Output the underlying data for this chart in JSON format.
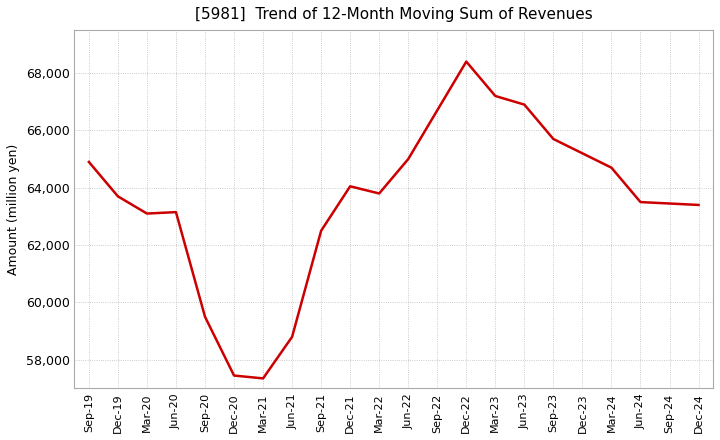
{
  "title": "[5981]  Trend of 12-Month Moving Sum of Revenues",
  "ylabel": "Amount (million yen)",
  "line_color": "#cc0000",
  "line_width": 1.8,
  "background_color": "#ffffff",
  "plot_bg_color": "#ffffff",
  "grid_color": "#bbbbbb",
  "ylim": [
    57000,
    69500
  ],
  "yticks": [
    58000,
    60000,
    62000,
    64000,
    66000,
    68000
  ],
  "ytick_labels": [
    "58,000",
    "60,000",
    "62,000",
    "64,000",
    "66,000",
    "68,000"
  ],
  "x_labels": [
    "Sep-19",
    "Dec-19",
    "Mar-20",
    "Jun-20",
    "Sep-20",
    "Dec-20",
    "Mar-21",
    "Jun-21",
    "Sep-21",
    "Dec-21",
    "Mar-22",
    "Jun-22",
    "Sep-22",
    "Dec-22",
    "Mar-23",
    "Jun-23",
    "Sep-23",
    "Dec-23",
    "Mar-24",
    "Jun-24",
    "Sep-24",
    "Dec-24"
  ],
  "values": [
    64900,
    63700,
    63100,
    63150,
    59500,
    57450,
    57350,
    58800,
    62500,
    64050,
    63800,
    65000,
    66700,
    68400,
    67200,
    66900,
    65700,
    65200,
    64700,
    63500,
    63450,
    63400
  ],
  "title_fontsize": 11,
  "ylabel_fontsize": 9,
  "ytick_fontsize": 9,
  "xtick_fontsize": 8
}
